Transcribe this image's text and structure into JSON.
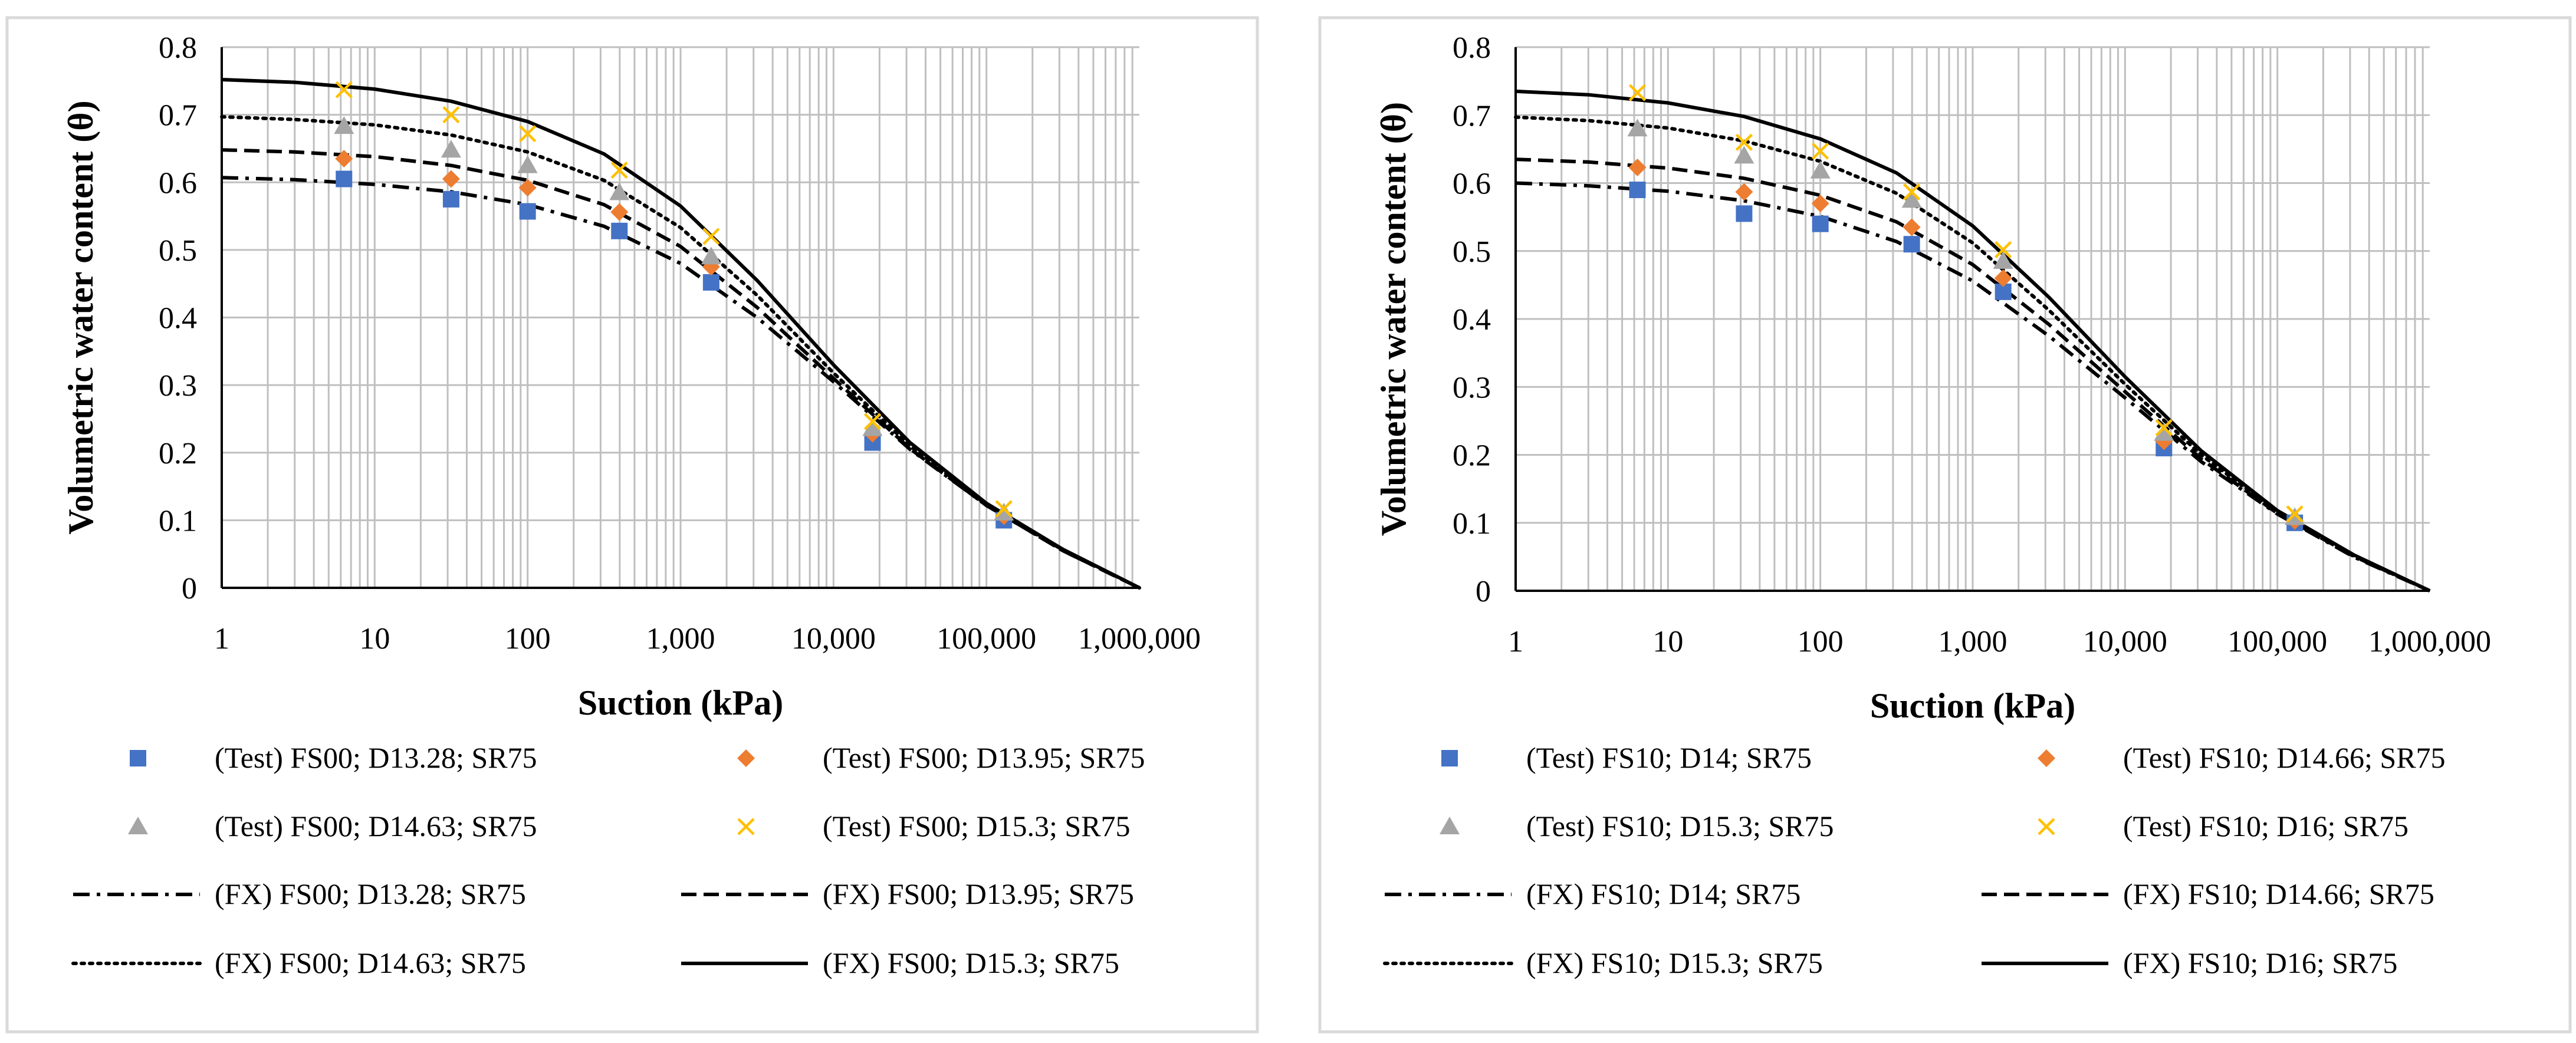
{
  "colors": {
    "blue": "#4472C4",
    "orange": "#ED7D31",
    "gray": "#A5A5A5",
    "yellow": "#FFC000",
    "line": "#000000",
    "grid": "#BFBFBF",
    "border": "#D9D9D9"
  },
  "chart_data": [
    {
      "type": "scatter",
      "xscale": "log",
      "xlabel": "Suction (kPa)",
      "ylabel": "Volumetric water content (θ)",
      "xlim": [
        1,
        1000000
      ],
      "ylim": [
        0,
        0.8
      ],
      "xticks": [
        "1",
        "10",
        "100",
        "1,000",
        "10,000",
        "100,000",
        "1,000,000"
      ],
      "yticks": [
        "0",
        "0.1",
        "0.2",
        "0.3",
        "0.4",
        "0.5",
        "0.6",
        "0.7",
        "0.8"
      ],
      "grid": true,
      "test_series": [
        {
          "name": "(Test) FS00; D13.28; SR75",
          "marker": "square",
          "color": "blue",
          "points": [
            [
              6.3,
              0.605
            ],
            [
              31.6,
              0.575
            ],
            [
              100,
              0.557
            ],
            [
              398,
              0.528
            ],
            [
              1585,
              0.452
            ],
            [
              18000,
              0.215
            ],
            [
              130000,
              0.1
            ]
          ]
        },
        {
          "name": "(Test) FS00; D13.95; SR75",
          "marker": "diamond",
          "color": "orange",
          "points": [
            [
              6.3,
              0.635
            ],
            [
              31.6,
              0.605
            ],
            [
              100,
              0.592
            ],
            [
              398,
              0.556
            ],
            [
              1585,
              0.475
            ],
            [
              18000,
              0.228
            ],
            [
              130000,
              0.106
            ]
          ]
        },
        {
          "name": "(Test) FS00; D14.63; SR75",
          "marker": "triangle",
          "color": "gray",
          "points": [
            [
              6.3,
              0.683
            ],
            [
              31.6,
              0.648
            ],
            [
              100,
              0.625
            ],
            [
              398,
              0.585
            ],
            [
              1585,
              0.49
            ],
            [
              18000,
              0.236
            ],
            [
              130000,
              0.111
            ]
          ]
        },
        {
          "name": "(Test) FS00; D15.3; SR75",
          "marker": "x",
          "color": "yellow",
          "points": [
            [
              6.3,
              0.737
            ],
            [
              31.6,
              0.7
            ],
            [
              100,
              0.672
            ],
            [
              398,
              0.618
            ],
            [
              1585,
              0.52
            ],
            [
              18000,
              0.246
            ],
            [
              130000,
              0.117
            ]
          ]
        }
      ],
      "fit_series": [
        {
          "name": "(FX) FS00; D13.28; SR75",
          "dash": "dashdot",
          "points": [
            [
              1,
              0.607
            ],
            [
              3,
              0.604
            ],
            [
              10,
              0.597
            ],
            [
              31.6,
              0.586
            ],
            [
              100,
              0.567
            ],
            [
              316,
              0.535
            ],
            [
              1000,
              0.48
            ],
            [
              3162,
              0.4
            ],
            [
              10000,
              0.305
            ],
            [
              31623,
              0.205
            ],
            [
              100000,
              0.122
            ],
            [
              316228,
              0.055
            ],
            [
              1000000,
              0.0
            ]
          ]
        },
        {
          "name": "(FX) FS00; D13.95; SR75",
          "dash": "dashed",
          "points": [
            [
              1,
              0.648
            ],
            [
              3,
              0.645
            ],
            [
              10,
              0.638
            ],
            [
              31.6,
              0.625
            ],
            [
              100,
              0.603
            ],
            [
              316,
              0.567
            ],
            [
              1000,
              0.505
            ],
            [
              3162,
              0.415
            ],
            [
              10000,
              0.31
            ],
            [
              31623,
              0.206
            ],
            [
              100000,
              0.122
            ],
            [
              316228,
              0.055
            ],
            [
              1000000,
              0.0
            ]
          ]
        },
        {
          "name": "(FX) FS00; D14.63; SR75",
          "dash": "dotted",
          "points": [
            [
              1,
              0.697
            ],
            [
              3,
              0.693
            ],
            [
              10,
              0.685
            ],
            [
              31.6,
              0.67
            ],
            [
              100,
              0.645
            ],
            [
              316,
              0.603
            ],
            [
              1000,
              0.533
            ],
            [
              3162,
              0.433
            ],
            [
              10000,
              0.318
            ],
            [
              31623,
              0.21
            ],
            [
              100000,
              0.123
            ],
            [
              316228,
              0.056
            ],
            [
              1000000,
              0.0
            ]
          ]
        },
        {
          "name": "(FX) FS00; D15.3; SR75",
          "dash": "solid",
          "points": [
            [
              1,
              0.752
            ],
            [
              3,
              0.748
            ],
            [
              10,
              0.738
            ],
            [
              31.6,
              0.72
            ],
            [
              100,
              0.69
            ],
            [
              316,
              0.642
            ],
            [
              1000,
              0.565
            ],
            [
              3162,
              0.455
            ],
            [
              10000,
              0.33
            ],
            [
              31623,
              0.215
            ],
            [
              100000,
              0.125
            ],
            [
              316228,
              0.057
            ],
            [
              1000000,
              0.0
            ]
          ]
        }
      ]
    },
    {
      "type": "scatter",
      "xscale": "log",
      "xlabel": "Suction (kPa)",
      "ylabel": "Volumetric water content (θ)",
      "xlim": [
        1,
        1000000
      ],
      "ylim": [
        0,
        0.8
      ],
      "xticks": [
        "1",
        "10",
        "100",
        "1,000",
        "10,000",
        "100,000",
        "1,000,000"
      ],
      "yticks": [
        "0",
        "0.1",
        "0.2",
        "0.3",
        "0.4",
        "0.5",
        "0.6",
        "0.7",
        "0.8"
      ],
      "grid": true,
      "test_series": [
        {
          "name": "(Test) FS10; D14; SR75",
          "marker": "square",
          "color": "blue",
          "points": [
            [
              6.3,
              0.59
            ],
            [
              31.6,
              0.555
            ],
            [
              100,
              0.54
            ],
            [
              398,
              0.51
            ],
            [
              1585,
              0.44
            ],
            [
              18000,
              0.21
            ],
            [
              130000,
              0.1
            ]
          ]
        },
        {
          "name": "(Test) FS10; D14.66; SR75",
          "marker": "diamond",
          "color": "orange",
          "points": [
            [
              6.3,
              0.623
            ],
            [
              31.6,
              0.587
            ],
            [
              100,
              0.57
            ],
            [
              398,
              0.535
            ],
            [
              1585,
              0.46
            ],
            [
              18000,
              0.22
            ],
            [
              130000,
              0.103
            ]
          ]
        },
        {
          "name": "(Test) FS10; D15.3; SR75",
          "marker": "triangle",
          "color": "gray",
          "points": [
            [
              6.3,
              0.68
            ],
            [
              31.6,
              0.64
            ],
            [
              100,
              0.618
            ],
            [
              398,
              0.575
            ],
            [
              1585,
              0.485
            ],
            [
              18000,
              0.232
            ],
            [
              130000,
              0.108
            ]
          ]
        },
        {
          "name": "(Test) FS10; D16; SR75",
          "marker": "x",
          "color": "yellow",
          "points": [
            [
              6.3,
              0.733
            ],
            [
              31.6,
              0.66
            ],
            [
              100,
              0.647
            ],
            [
              398,
              0.587
            ],
            [
              1585,
              0.502
            ],
            [
              18000,
              0.24
            ],
            [
              130000,
              0.113
            ]
          ]
        }
      ],
      "fit_series": [
        {
          "name": "(FX) FS10; D14; SR75",
          "dash": "dashdot",
          "points": [
            [
              1,
              0.6
            ],
            [
              3,
              0.596
            ],
            [
              10,
              0.588
            ],
            [
              31.6,
              0.574
            ],
            [
              100,
              0.551
            ],
            [
              316,
              0.514
            ],
            [
              1000,
              0.456
            ],
            [
              3162,
              0.375
            ],
            [
              10000,
              0.284
            ],
            [
              31623,
              0.19
            ],
            [
              100000,
              0.113
            ],
            [
              316228,
              0.05
            ],
            [
              1000000,
              0.0
            ]
          ]
        },
        {
          "name": "(FX) FS10; D14.66; SR75",
          "dash": "dashed",
          "points": [
            [
              1,
              0.635
            ],
            [
              3,
              0.631
            ],
            [
              10,
              0.622
            ],
            [
              31.6,
              0.607
            ],
            [
              100,
              0.582
            ],
            [
              316,
              0.543
            ],
            [
              1000,
              0.48
            ],
            [
              3162,
              0.392
            ],
            [
              10000,
              0.293
            ],
            [
              31623,
              0.194
            ],
            [
              100000,
              0.114
            ],
            [
              316228,
              0.051
            ],
            [
              1000000,
              0.0
            ]
          ]
        },
        {
          "name": "(FX) FS10; D15.3; SR75",
          "dash": "dotted",
          "points": [
            [
              1,
              0.697
            ],
            [
              3,
              0.692
            ],
            [
              10,
              0.681
            ],
            [
              31.6,
              0.662
            ],
            [
              100,
              0.632
            ],
            [
              316,
              0.585
            ],
            [
              1000,
              0.512
            ],
            [
              3162,
              0.413
            ],
            [
              10000,
              0.304
            ],
            [
              31623,
              0.2
            ],
            [
              100000,
              0.116
            ],
            [
              316228,
              0.052
            ],
            [
              1000000,
              0.0
            ]
          ]
        },
        {
          "name": "(FX) FS10; D16; SR75",
          "dash": "solid",
          "points": [
            [
              1,
              0.735
            ],
            [
              3,
              0.73
            ],
            [
              10,
              0.718
            ],
            [
              31.6,
              0.698
            ],
            [
              100,
              0.665
            ],
            [
              316,
              0.615
            ],
            [
              1000,
              0.537
            ],
            [
              3162,
              0.432
            ],
            [
              10000,
              0.315
            ],
            [
              31623,
              0.206
            ],
            [
              100000,
              0.118
            ],
            [
              316228,
              0.053
            ],
            [
              1000000,
              0.0
            ]
          ]
        }
      ]
    }
  ]
}
